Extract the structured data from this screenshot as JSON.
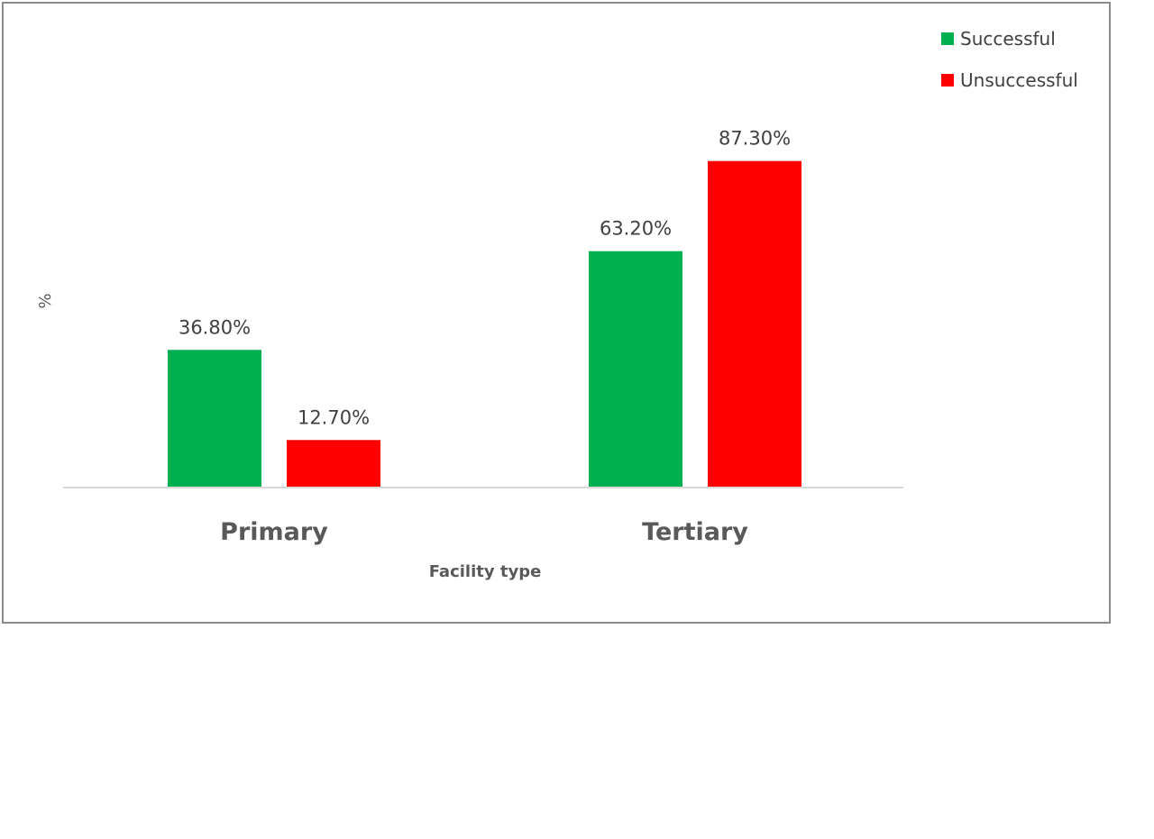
{
  "chart_data": {
    "type": "bar",
    "categories": [
      "Primary",
      "Tertiary"
    ],
    "series": [
      {
        "name": "Successful",
        "values": [
          36.8,
          63.2
        ],
        "labels": [
          "36.80%",
          "63.20%"
        ],
        "color": "#00B050"
      },
      {
        "name": "Unsuccessful",
        "values": [
          12.7,
          87.3
        ],
        "labels": [
          "12.70%",
          "87.30%"
        ],
        "color": "#FF0000"
      }
    ],
    "title": "",
    "xlabel": "Facility type",
    "ylabel": "%",
    "ylim": [
      0,
      100
    ],
    "grid": false,
    "legend_position": "top-right",
    "axis_line_color": "#d9d9d9",
    "frame_border_color": "#8c8c8c"
  }
}
